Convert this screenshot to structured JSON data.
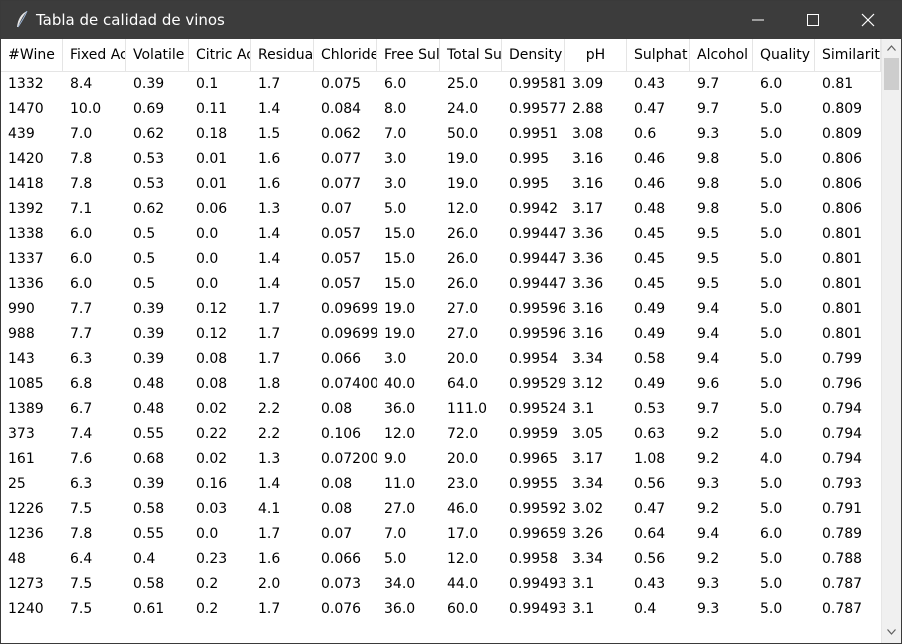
{
  "window": {
    "title": "Tabla de calidad de vinos",
    "icon": "feather-icon",
    "controls": [
      "minimize-icon",
      "maximize-icon",
      "close-icon"
    ]
  },
  "table": {
    "columns": [
      "#Wine",
      "Fixed Ac",
      "Volatile",
      "Citric Ac",
      "Residua",
      "Chloride",
      "Free Sul",
      "Total Su",
      "Density",
      "pH",
      "Sulphat",
      "Alcohol",
      "Quality",
      "Similarit"
    ],
    "rows": [
      [
        "1332",
        "8.4",
        "0.39",
        "0.1",
        "1.7",
        "0.075",
        "6.0",
        "25.0",
        "0.99581(",
        "3.09",
        "0.43",
        "9.7",
        "6.0",
        "0.81"
      ],
      [
        "1470",
        "10.0",
        "0.69",
        "0.11",
        "1.4",
        "0.084",
        "8.0",
        "24.0",
        "0.99577§",
        "2.88",
        "0.47",
        "9.7",
        "5.0",
        "0.809"
      ],
      [
        "439",
        "7.0",
        "0.62",
        "0.18",
        "1.5",
        "0.062",
        "7.0",
        "50.0",
        "0.9951",
        "3.08",
        "0.6",
        "9.3",
        "5.0",
        "0.809"
      ],
      [
        "1420",
        "7.8",
        "0.53",
        "0.01",
        "1.6",
        "0.077",
        "3.0",
        "19.0",
        "0.995",
        "3.16",
        "0.46",
        "9.8",
        "5.0",
        "0.806"
      ],
      [
        "1418",
        "7.8",
        "0.53",
        "0.01",
        "1.6",
        "0.077",
        "3.0",
        "19.0",
        "0.995",
        "3.16",
        "0.46",
        "9.8",
        "5.0",
        "0.806"
      ],
      [
        "1392",
        "7.1",
        "0.62",
        "0.06",
        "1.3",
        "0.07",
        "5.0",
        "12.0",
        "0.9942",
        "3.17",
        "0.48",
        "9.8",
        "5.0",
        "0.806"
      ],
      [
        "1338",
        "6.0",
        "0.5",
        "0.0",
        "1.4",
        "0.057",
        "15.0",
        "26.0",
        "0.99447§",
        "3.36",
        "0.45",
        "9.5",
        "5.0",
        "0.801"
      ],
      [
        "1337",
        "6.0",
        "0.5",
        "0.0",
        "1.4",
        "0.057",
        "15.0",
        "26.0",
        "0.99447§",
        "3.36",
        "0.45",
        "9.5",
        "5.0",
        "0.801"
      ],
      [
        "1336",
        "6.0",
        "0.5",
        "0.0",
        "1.4",
        "0.057",
        "15.0",
        "26.0",
        "0.99447§",
        "3.36",
        "0.45",
        "9.5",
        "5.0",
        "0.801"
      ],
      [
        "990",
        "7.7",
        "0.39",
        "0.12",
        "1.7",
        "0.09699§",
        "19.0",
        "27.0",
        "0.99596(",
        "3.16",
        "0.49",
        "9.4",
        "5.0",
        "0.801"
      ],
      [
        "988",
        "7.7",
        "0.39",
        "0.12",
        "1.7",
        "0.09699§",
        "19.0",
        "27.0",
        "0.99596(",
        "3.16",
        "0.49",
        "9.4",
        "5.0",
        "0.801"
      ],
      [
        "143",
        "6.3",
        "0.39",
        "0.08",
        "1.7",
        "0.066",
        "3.0",
        "20.0",
        "0.9954",
        "3.34",
        "0.58",
        "9.4",
        "5.0",
        "0.799"
      ],
      [
        "1085",
        "6.8",
        "0.48",
        "0.08",
        "1.8",
        "0.07400(",
        "40.0",
        "64.0",
        "0.99529",
        "3.12",
        "0.49",
        "9.6",
        "5.0",
        "0.796"
      ],
      [
        "1389",
        "6.7",
        "0.48",
        "0.02",
        "2.2",
        "0.08",
        "36.0",
        "111.0",
        "0.99524",
        "3.1",
        "0.53",
        "9.7",
        "5.0",
        "0.794"
      ],
      [
        "373",
        "7.4",
        "0.55",
        "0.22",
        "2.2",
        "0.106",
        "12.0",
        "72.0",
        "0.9959",
        "3.05",
        "0.63",
        "9.2",
        "5.0",
        "0.794"
      ],
      [
        "161",
        "7.6",
        "0.68",
        "0.02",
        "1.3",
        "0.07200(",
        "9.0",
        "20.0",
        "0.9965",
        "3.17",
        "1.08",
        "9.2",
        "4.0",
        "0.794"
      ],
      [
        "25",
        "6.3",
        "0.39",
        "0.16",
        "1.4",
        "0.08",
        "11.0",
        "23.0",
        "0.9955",
        "3.34",
        "0.56",
        "9.3",
        "5.0",
        "0.793"
      ],
      [
        "1226",
        "7.5",
        "0.58",
        "0.03",
        "4.1",
        "0.08",
        "27.0",
        "46.0",
        "0.99592",
        "3.02",
        "0.47",
        "9.2",
        "5.0",
        "0.791"
      ],
      [
        "1236",
        "7.8",
        "0.55",
        "0.0",
        "1.7",
        "0.07",
        "7.0",
        "17.0",
        "0.99659",
        "3.26",
        "0.64",
        "9.4",
        "6.0",
        "0.789"
      ],
      [
        "48",
        "6.4",
        "0.4",
        "0.23",
        "1.6",
        "0.066",
        "5.0",
        "12.0",
        "0.9958",
        "3.34",
        "0.56",
        "9.2",
        "5.0",
        "0.788"
      ],
      [
        "1273",
        "7.5",
        "0.58",
        "0.2",
        "2.0",
        "0.073",
        "34.0",
        "44.0",
        "0.99493§",
        "3.1",
        "0.43",
        "9.3",
        "5.0",
        "0.787"
      ],
      [
        "1240",
        "7.5",
        "0.61",
        "0.2",
        "1.7",
        "0.076",
        "36.0",
        "60.0",
        "0.99493§",
        "3.1",
        "0.4",
        "9.3",
        "5.0",
        "0.787"
      ]
    ]
  },
  "scrollbar": {
    "up_icon": "chevron-up-icon",
    "down_icon": "chevron-down-icon"
  },
  "colors": {
    "titlebar": "#3c3c3c",
    "scroll_thumb": "#cdcdcd"
  }
}
